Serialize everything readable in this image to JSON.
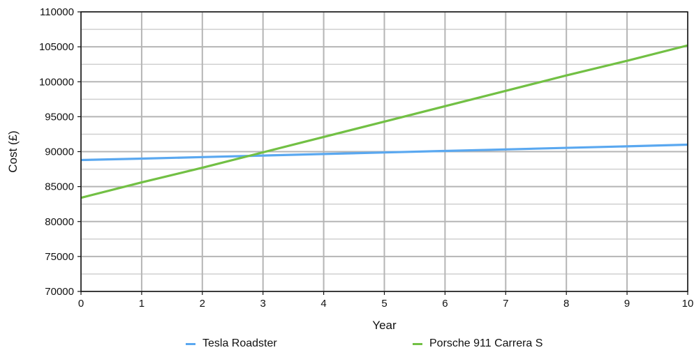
{
  "chart_data": {
    "type": "line",
    "title": "",
    "xlabel": "Year",
    "ylabel": "Cost (£)",
    "x": [
      0,
      1,
      2,
      3,
      4,
      5,
      6,
      7,
      8,
      9,
      10
    ],
    "xlim": [
      0,
      10
    ],
    "ylim": [
      70000,
      110000
    ],
    "y_ticks": [
      "70000",
      "75000",
      "80000",
      "85000",
      "90000",
      "95000",
      "100000",
      "105000",
      "110000"
    ],
    "x_ticks": [
      "0",
      "1",
      "2",
      "3",
      "4",
      "5",
      "6",
      "7",
      "8",
      "9",
      "10"
    ],
    "grid": true,
    "legend_position": "bottom",
    "series": [
      {
        "name": "Tesla Roadster",
        "color": "#5aa8f0",
        "values": [
          88800,
          89000,
          89220,
          89440,
          89660,
          89880,
          90100,
          90320,
          90540,
          90760,
          91000
        ]
      },
      {
        "name": "Porsche 911 Carrera S",
        "color": "#72c044",
        "values": [
          83400,
          85600,
          87700,
          89900,
          92100,
          94300,
          96500,
          98700,
          100900,
          103000,
          105200
        ]
      }
    ]
  }
}
